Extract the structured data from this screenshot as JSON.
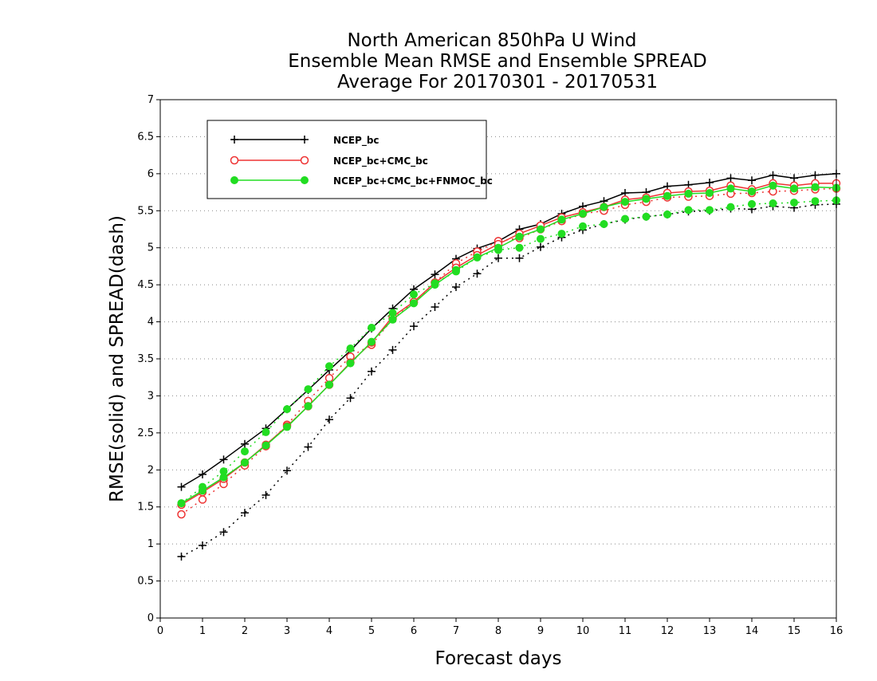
{
  "chart_data": {
    "type": "line",
    "title": [
      "North American 850hPa U Wind",
      "Ensemble Mean RMSE and Ensemble SPREAD",
      "Average For 20170301 - 20170531"
    ],
    "xlabel": "Forecast days",
    "ylabel": "RMSE(solid) and SPREAD(dash)",
    "xlim": [
      0,
      16
    ],
    "ylim": [
      0,
      7
    ],
    "x_ticks": [
      "0",
      "1",
      "2",
      "3",
      "4",
      "5",
      "6",
      "7",
      "8",
      "9",
      "10",
      "11",
      "12",
      "13",
      "14",
      "15",
      "16"
    ],
    "y_ticks": [
      "0",
      "0.5",
      "1",
      "1.5",
      "2",
      "2.5",
      "3",
      "3.5",
      "4",
      "4.5",
      "5",
      "5.5",
      "6",
      "6.5",
      "7"
    ],
    "grid": "horizontal dotted",
    "legend_position": "top-left",
    "x": [
      0.5,
      1,
      1.5,
      2,
      2.5,
      3,
      3.5,
      4,
      4.5,
      5,
      5.5,
      6,
      6.5,
      7,
      7.5,
      8,
      8.5,
      9,
      9.5,
      10,
      10.5,
      11,
      11.5,
      12,
      12.5,
      13,
      13.5,
      14,
      14.5,
      15,
      15.5,
      16
    ],
    "series": [
      {
        "name": "NCEP_bc",
        "color": "#000000",
        "marker": "plus",
        "rmse": [
          1.77,
          1.94,
          2.14,
          2.35,
          2.56,
          2.82,
          3.08,
          3.35,
          3.61,
          3.91,
          4.18,
          4.44,
          4.64,
          4.85,
          4.99,
          5.09,
          5.25,
          5.32,
          5.46,
          5.56,
          5.63,
          5.74,
          5.75,
          5.83,
          5.85,
          5.88,
          5.94,
          5.91,
          5.98,
          5.94,
          5.98,
          6.0
        ],
        "spread": [
          0.83,
          0.98,
          1.16,
          1.42,
          1.66,
          1.99,
          2.31,
          2.68,
          2.97,
          3.33,
          3.62,
          3.94,
          4.2,
          4.47,
          4.65,
          4.86,
          4.86,
          5.01,
          5.14,
          5.24,
          5.32,
          5.38,
          5.42,
          5.45,
          5.49,
          5.5,
          5.53,
          5.52,
          5.56,
          5.54,
          5.58,
          5.59
        ]
      },
      {
        "name": "NCEP_bc+CMC_bc",
        "color": "#ee3333",
        "marker": "circle-open",
        "rmse": [
          1.53,
          1.7,
          1.88,
          2.1,
          2.34,
          2.59,
          2.86,
          3.15,
          3.45,
          3.72,
          4.07,
          4.27,
          4.53,
          4.73,
          4.9,
          5.05,
          5.19,
          5.3,
          5.41,
          5.48,
          5.55,
          5.65,
          5.68,
          5.74,
          5.76,
          5.77,
          5.84,
          5.79,
          5.87,
          5.84,
          5.87,
          5.87
        ],
        "spread": [
          1.4,
          1.6,
          1.81,
          2.06,
          2.32,
          2.61,
          2.93,
          3.24,
          3.53,
          3.69,
          4.04,
          4.26,
          4.53,
          4.79,
          4.95,
          5.09,
          5.13,
          5.25,
          5.36,
          5.46,
          5.5,
          5.58,
          5.62,
          5.68,
          5.69,
          5.7,
          5.73,
          5.74,
          5.76,
          5.77,
          5.79,
          5.8
        ]
      },
      {
        "name": "NCEP_bc+CMC_bc+FNMOC_bc",
        "color": "#22dd22",
        "marker": "circle-filled",
        "rmse": [
          1.55,
          1.72,
          1.9,
          2.1,
          2.33,
          2.58,
          2.86,
          3.15,
          3.44,
          3.73,
          4.03,
          4.25,
          4.5,
          4.7,
          4.87,
          5.0,
          5.15,
          5.25,
          5.38,
          5.46,
          5.55,
          5.62,
          5.66,
          5.7,
          5.73,
          5.74,
          5.8,
          5.76,
          5.84,
          5.8,
          5.82,
          5.81
        ],
        "spread": [
          1.55,
          1.77,
          1.98,
          2.25,
          2.51,
          2.82,
          3.09,
          3.4,
          3.64,
          3.92,
          4.12,
          4.37,
          4.52,
          4.68,
          4.87,
          4.97,
          5.0,
          5.12,
          5.19,
          5.29,
          5.32,
          5.39,
          5.42,
          5.45,
          5.51,
          5.51,
          5.55,
          5.59,
          5.6,
          5.61,
          5.63,
          5.64
        ]
      }
    ]
  }
}
